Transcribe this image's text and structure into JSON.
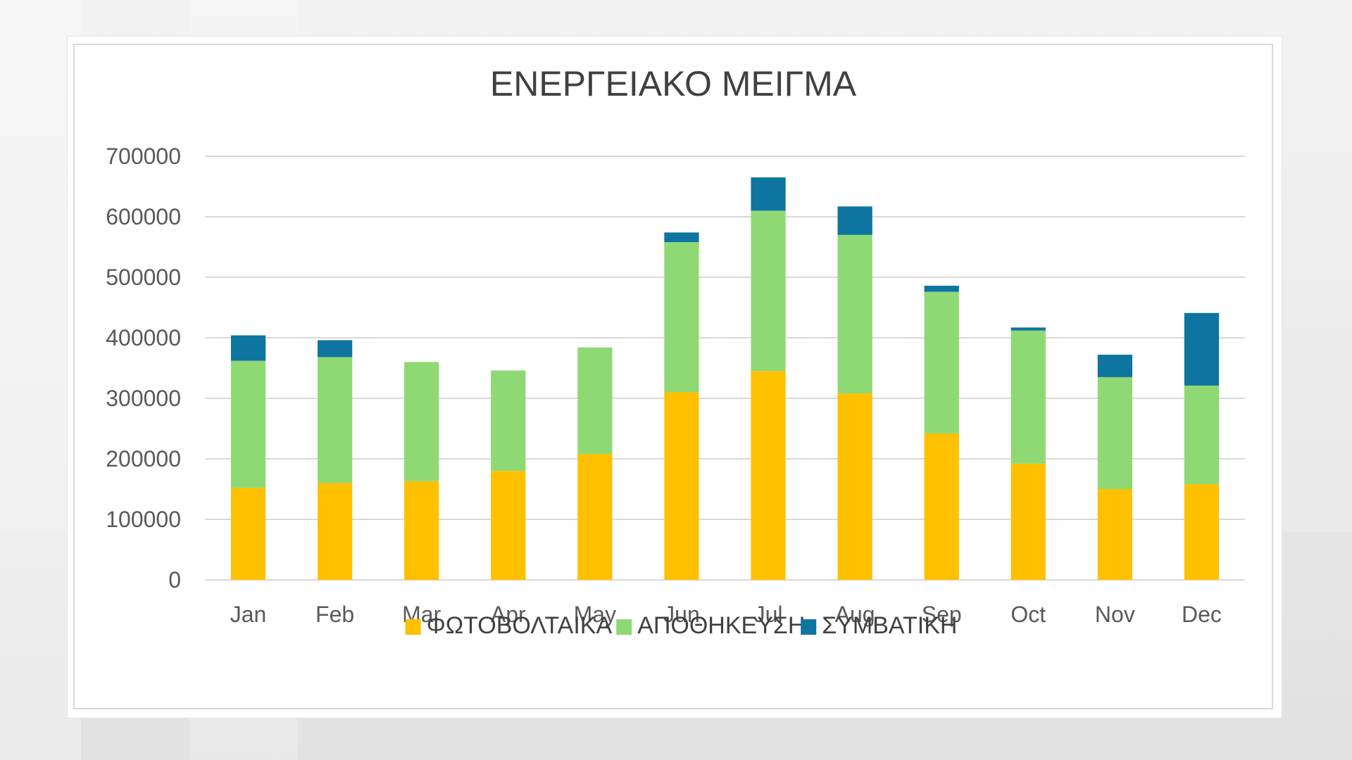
{
  "chart_data": {
    "type": "bar",
    "stacked": true,
    "title": "ΕΝΕΡΓΕΙΑΚΟ ΜΕΙΓΜΑ",
    "categories": [
      "Jan",
      "Feb",
      "Mar",
      "Apr",
      "May",
      "Jun",
      "Jul",
      "Aug",
      "Sep",
      "Oct",
      "Nov",
      "Dec"
    ],
    "series": [
      {
        "name": "ΦΩΤΟΒΟΛΤΑΙΚΑ",
        "color": "#FFC000",
        "values": [
          152000,
          160000,
          163000,
          180000,
          208000,
          310000,
          345000,
          308000,
          242000,
          192000,
          150000,
          158000
        ]
      },
      {
        "name": "ΑΠΟΘΗΚΕΥΣΗ",
        "color": "#8FD974",
        "values": [
          210000,
          208000,
          197000,
          166000,
          176000,
          248000,
          265000,
          262000,
          234000,
          220000,
          185000,
          163000
        ]
      },
      {
        "name": "ΣΥΜΒΑΤΙΚΗ",
        "color": "#0E74A0",
        "values": [
          42000,
          28000,
          0,
          0,
          0,
          16000,
          55000,
          47000,
          10000,
          5000,
          37000,
          120000
        ]
      }
    ],
    "ylim": [
      0,
      700000
    ],
    "yticks": [
      0,
      100000,
      200000,
      300000,
      400000,
      500000,
      600000,
      700000
    ],
    "grid": true,
    "legend_position": "bottom"
  }
}
